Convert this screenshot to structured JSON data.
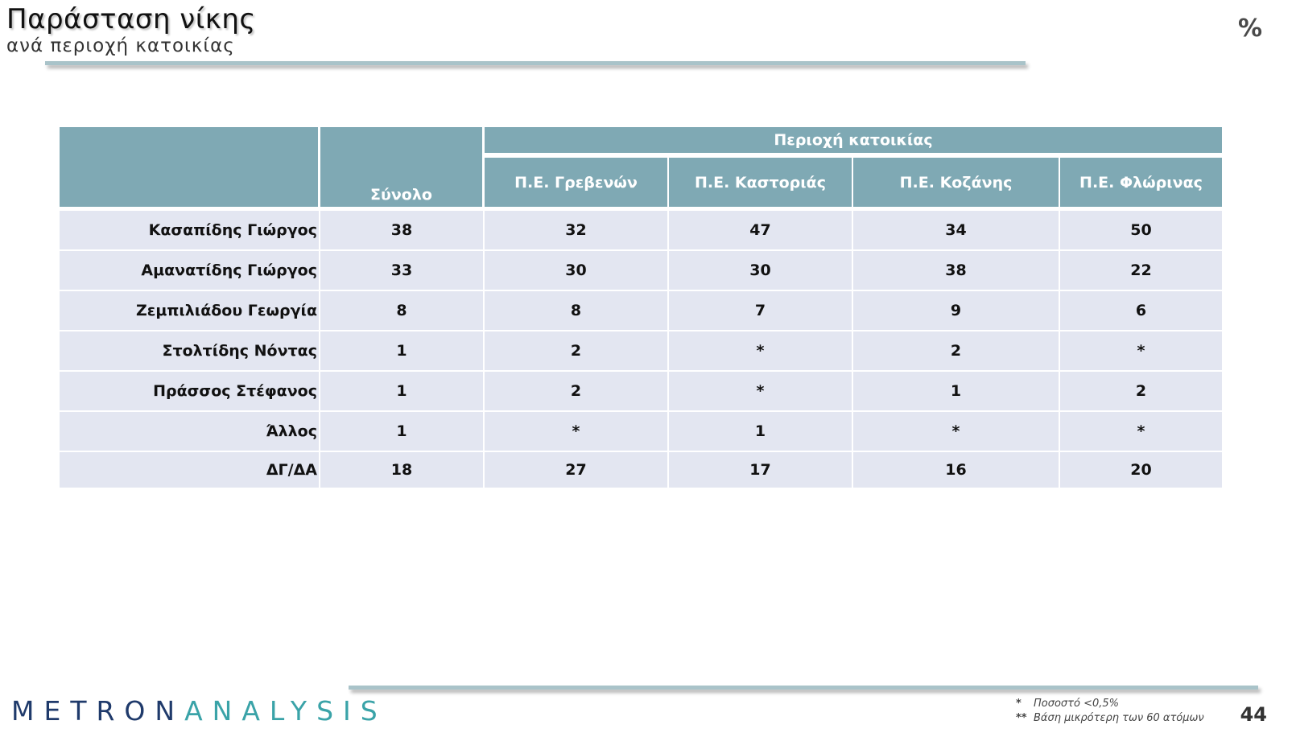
{
  "header": {
    "title": "Παράσταση νίκης",
    "subtitle": "ανά περιοχή κατοικίας",
    "unit": "%"
  },
  "table": {
    "total_label": "Σύνολο",
    "group_label": "Περιοχή κατοικίας",
    "columns": [
      "Π.Ε. Γρεβενών",
      "Π.Ε. Καστοριάς",
      "Π.Ε. Κοζάνης",
      "Π.Ε. Φλώρινας"
    ],
    "rows": [
      {
        "label": "Κασαπίδης Γιώργος",
        "total": "38",
        "values": [
          "32",
          "47",
          "34",
          "50"
        ]
      },
      {
        "label": "Αμανατίδης Γιώργος",
        "total": "33",
        "values": [
          "30",
          "30",
          "38",
          "22"
        ]
      },
      {
        "label": "Ζεμπιλιάδου Γεωργία",
        "total": "8",
        "values": [
          "8",
          "7",
          "9",
          "6"
        ]
      },
      {
        "label": "Στολτίδης Νόντας",
        "total": "1",
        "values": [
          "2",
          "*",
          "2",
          "*"
        ]
      },
      {
        "label": "Πράσσος Στέφανος",
        "total": "1",
        "values": [
          "2",
          "*",
          "1",
          "2"
        ]
      },
      {
        "label": "Άλλος",
        "total": "1",
        "values": [
          "*",
          "1",
          "*",
          "*"
        ]
      },
      {
        "label": "ΔΓ/ΔΑ",
        "total": "18",
        "values": [
          "27",
          "17",
          "16",
          "20"
        ]
      }
    ]
  },
  "footer": {
    "logo_part1": "METRON",
    "logo_part2": "ANALYSIS",
    "note1_marker": "*",
    "note1_text": "Ποσοστό <0,5%",
    "note2_marker": "**",
    "note2_text": "Βάση μικρότερη των 60 ατόμων",
    "page_number": "44"
  },
  "colors": {
    "header_fill": "#7fa9b4",
    "row_fill": "#e3e6f1",
    "rule": "#a9c3c9",
    "logo_dark": "#1f3a6b",
    "logo_teal": "#3aa3a8"
  }
}
